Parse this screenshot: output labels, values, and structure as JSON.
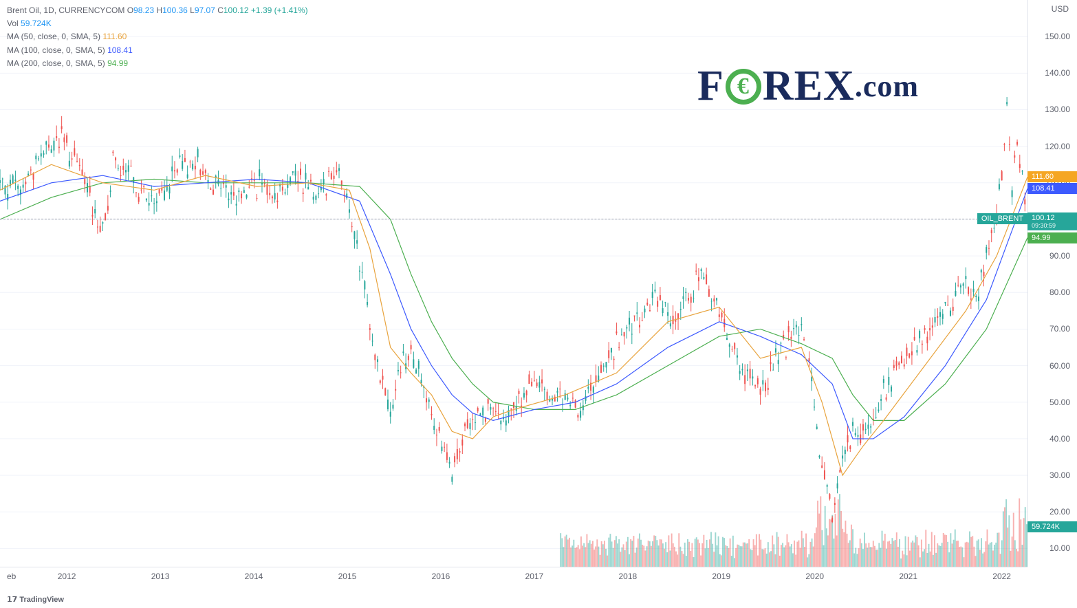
{
  "header": {
    "symbol_desc": "Brent Oil, 1D, CURRENCYCOM",
    "open_label": "O",
    "open": "98.23",
    "high_label": "H",
    "high": "100.36",
    "low_label": "L",
    "low": "97.07",
    "close_label": "C",
    "close": "100.12",
    "change": "+1.39 (+1.41%)",
    "vol_label": "Vol",
    "vol": "59.724K",
    "ma50_label": "MA (50, close, 0, SMA, 5)",
    "ma50": "111.60",
    "ma100_label": "MA (100, close, 0, SMA, 5)",
    "ma100": "108.41",
    "ma200_label": "MA (200, close, 0, SMA, 5)",
    "ma200": "94.99"
  },
  "axis": {
    "y_label": "USD",
    "y_ticks": [
      "150.00",
      "140.00",
      "130.00",
      "120.00",
      "110.00",
      "100.00",
      "90.00",
      "80.00",
      "70.00",
      "60.00",
      "50.00",
      "40.00",
      "30.00",
      "20.00",
      "10.00"
    ],
    "ylim_top": 160,
    "ylim_bottom": 5,
    "x_ticks": [
      "2012",
      "2013",
      "2014",
      "2015",
      "2016",
      "2017",
      "2018",
      "2019",
      "2020",
      "2021",
      "2022"
    ],
    "x_first_label": "eb"
  },
  "badges": {
    "ma50": {
      "value": "111.60",
      "bg": "#f5a623",
      "y": 111.6
    },
    "ma100": {
      "value": "108.41",
      "bg": "#3d5afe",
      "y": 108.41
    },
    "symbol": {
      "value": "OIL_BRENT",
      "bg": "#26a69a",
      "y": 100.12
    },
    "price": {
      "value": "100.12",
      "sub": "09:30:59",
      "bg": "#26a69a",
      "y": 100.12
    },
    "ma200": {
      "value": "94.99",
      "bg": "#4caf50",
      "y": 94.99
    },
    "vol": {
      "value": "59.724K",
      "bg": "#26a69a",
      "y": 16
    }
  },
  "chart": {
    "type": "candlestick+ma+volume",
    "colors": {
      "up": "#26a69a",
      "down": "#ef5350",
      "ma50": "#e8a33d",
      "ma100": "#3d5afe",
      "ma200": "#4caf50",
      "grid": "#f0f3fa",
      "bg": "#ffffff",
      "text": "#5d606b"
    },
    "line_width": 1.2,
    "price_series": [
      {
        "t": 0.0,
        "v": 110
      },
      {
        "t": 0.02,
        "v": 108
      },
      {
        "t": 0.04,
        "v": 118
      },
      {
        "t": 0.06,
        "v": 122
      },
      {
        "t": 0.08,
        "v": 112
      },
      {
        "t": 0.1,
        "v": 97
      },
      {
        "t": 0.11,
        "v": 115
      },
      {
        "t": 0.13,
        "v": 110
      },
      {
        "t": 0.15,
        "v": 104
      },
      {
        "t": 0.17,
        "v": 112
      },
      {
        "t": 0.19,
        "v": 116
      },
      {
        "t": 0.21,
        "v": 110
      },
      {
        "t": 0.23,
        "v": 106
      },
      {
        "t": 0.25,
        "v": 110
      },
      {
        "t": 0.27,
        "v": 108
      },
      {
        "t": 0.29,
        "v": 112
      },
      {
        "t": 0.31,
        "v": 108
      },
      {
        "t": 0.33,
        "v": 115
      },
      {
        "t": 0.34,
        "v": 102
      },
      {
        "t": 0.35,
        "v": 88
      },
      {
        "t": 0.36,
        "v": 70
      },
      {
        "t": 0.37,
        "v": 58
      },
      {
        "t": 0.38,
        "v": 48
      },
      {
        "t": 0.39,
        "v": 60
      },
      {
        "t": 0.4,
        "v": 65
      },
      {
        "t": 0.41,
        "v": 56
      },
      {
        "t": 0.42,
        "v": 48
      },
      {
        "t": 0.43,
        "v": 37
      },
      {
        "t": 0.44,
        "v": 30
      },
      {
        "t": 0.45,
        "v": 40
      },
      {
        "t": 0.46,
        "v": 45
      },
      {
        "t": 0.47,
        "v": 50
      },
      {
        "t": 0.48,
        "v": 46
      },
      {
        "t": 0.49,
        "v": 42
      },
      {
        "t": 0.5,
        "v": 50
      },
      {
        "t": 0.52,
        "v": 55
      },
      {
        "t": 0.54,
        "v": 52
      },
      {
        "t": 0.56,
        "v": 48
      },
      {
        "t": 0.58,
        "v": 55
      },
      {
        "t": 0.6,
        "v": 65
      },
      {
        "t": 0.62,
        "v": 72
      },
      {
        "t": 0.64,
        "v": 78
      },
      {
        "t": 0.66,
        "v": 72
      },
      {
        "t": 0.68,
        "v": 85
      },
      {
        "t": 0.7,
        "v": 75
      },
      {
        "t": 0.72,
        "v": 60
      },
      {
        "t": 0.74,
        "v": 52
      },
      {
        "t": 0.76,
        "v": 65
      },
      {
        "t": 0.78,
        "v": 70
      },
      {
        "t": 0.79,
        "v": 55
      },
      {
        "t": 0.8,
        "v": 30
      },
      {
        "t": 0.81,
        "v": 20
      },
      {
        "t": 0.82,
        "v": 35
      },
      {
        "t": 0.83,
        "v": 42
      },
      {
        "t": 0.84,
        "v": 40
      },
      {
        "t": 0.85,
        "v": 45
      },
      {
        "t": 0.86,
        "v": 52
      },
      {
        "t": 0.88,
        "v": 62
      },
      {
        "t": 0.9,
        "v": 68
      },
      {
        "t": 0.92,
        "v": 75
      },
      {
        "t": 0.94,
        "v": 83
      },
      {
        "t": 0.95,
        "v": 78
      },
      {
        "t": 0.96,
        "v": 90
      },
      {
        "t": 0.97,
        "v": 100
      },
      {
        "t": 0.98,
        "v": 130
      },
      {
        "t": 0.985,
        "v": 108
      },
      {
        "t": 0.99,
        "v": 122
      },
      {
        "t": 1.0,
        "v": 100
      }
    ],
    "ma50_series": [
      {
        "t": 0.0,
        "v": 108
      },
      {
        "t": 0.05,
        "v": 115
      },
      {
        "t": 0.1,
        "v": 110
      },
      {
        "t": 0.15,
        "v": 108
      },
      {
        "t": 0.2,
        "v": 112
      },
      {
        "t": 0.25,
        "v": 109
      },
      {
        "t": 0.3,
        "v": 110
      },
      {
        "t": 0.34,
        "v": 108
      },
      {
        "t": 0.36,
        "v": 92
      },
      {
        "t": 0.38,
        "v": 65
      },
      {
        "t": 0.4,
        "v": 58
      },
      {
        "t": 0.42,
        "v": 52
      },
      {
        "t": 0.44,
        "v": 42
      },
      {
        "t": 0.46,
        "v": 40
      },
      {
        "t": 0.48,
        "v": 46
      },
      {
        "t": 0.5,
        "v": 48
      },
      {
        "t": 0.55,
        "v": 52
      },
      {
        "t": 0.6,
        "v": 58
      },
      {
        "t": 0.65,
        "v": 72
      },
      {
        "t": 0.7,
        "v": 76
      },
      {
        "t": 0.74,
        "v": 62
      },
      {
        "t": 0.78,
        "v": 65
      },
      {
        "t": 0.8,
        "v": 50
      },
      {
        "t": 0.82,
        "v": 30
      },
      {
        "t": 0.84,
        "v": 38
      },
      {
        "t": 0.86,
        "v": 45
      },
      {
        "t": 0.9,
        "v": 60
      },
      {
        "t": 0.94,
        "v": 75
      },
      {
        "t": 0.97,
        "v": 90
      },
      {
        "t": 1.0,
        "v": 111.6
      }
    ],
    "ma100_series": [
      {
        "t": 0.0,
        "v": 105
      },
      {
        "t": 0.05,
        "v": 110
      },
      {
        "t": 0.1,
        "v": 112
      },
      {
        "t": 0.15,
        "v": 109
      },
      {
        "t": 0.2,
        "v": 110
      },
      {
        "t": 0.25,
        "v": 111
      },
      {
        "t": 0.3,
        "v": 110
      },
      {
        "t": 0.35,
        "v": 105
      },
      {
        "t": 0.38,
        "v": 85
      },
      {
        "t": 0.4,
        "v": 70
      },
      {
        "t": 0.42,
        "v": 60
      },
      {
        "t": 0.44,
        "v": 52
      },
      {
        "t": 0.46,
        "v": 47
      },
      {
        "t": 0.48,
        "v": 45
      },
      {
        "t": 0.52,
        "v": 48
      },
      {
        "t": 0.56,
        "v": 50
      },
      {
        "t": 0.6,
        "v": 55
      },
      {
        "t": 0.65,
        "v": 65
      },
      {
        "t": 0.7,
        "v": 72
      },
      {
        "t": 0.74,
        "v": 68
      },
      {
        "t": 0.78,
        "v": 63
      },
      {
        "t": 0.81,
        "v": 55
      },
      {
        "t": 0.83,
        "v": 40
      },
      {
        "t": 0.85,
        "v": 40
      },
      {
        "t": 0.88,
        "v": 46
      },
      {
        "t": 0.92,
        "v": 60
      },
      {
        "t": 0.96,
        "v": 78
      },
      {
        "t": 1.0,
        "v": 108.4
      }
    ],
    "ma200_series": [
      {
        "t": 0.0,
        "v": 100
      },
      {
        "t": 0.05,
        "v": 106
      },
      {
        "t": 0.1,
        "v": 110
      },
      {
        "t": 0.15,
        "v": 111
      },
      {
        "t": 0.2,
        "v": 110
      },
      {
        "t": 0.25,
        "v": 110
      },
      {
        "t": 0.3,
        "v": 110
      },
      {
        "t": 0.35,
        "v": 109
      },
      {
        "t": 0.38,
        "v": 100
      },
      {
        "t": 0.4,
        "v": 85
      },
      {
        "t": 0.42,
        "v": 72
      },
      {
        "t": 0.44,
        "v": 62
      },
      {
        "t": 0.46,
        "v": 55
      },
      {
        "t": 0.48,
        "v": 50
      },
      {
        "t": 0.52,
        "v": 48
      },
      {
        "t": 0.56,
        "v": 48
      },
      {
        "t": 0.6,
        "v": 52
      },
      {
        "t": 0.65,
        "v": 60
      },
      {
        "t": 0.7,
        "v": 68
      },
      {
        "t": 0.74,
        "v": 70
      },
      {
        "t": 0.78,
        "v": 66
      },
      {
        "t": 0.81,
        "v": 62
      },
      {
        "t": 0.83,
        "v": 52
      },
      {
        "t": 0.85,
        "v": 45
      },
      {
        "t": 0.88,
        "v": 45
      },
      {
        "t": 0.92,
        "v": 55
      },
      {
        "t": 0.96,
        "v": 70
      },
      {
        "t": 1.0,
        "v": 94.99
      }
    ],
    "volume_start_t": 0.545,
    "volume_max": 220
  },
  "logo": {
    "pre": "F",
    "post": "REX",
    "dotcom": ".com"
  },
  "footer": "TradingView"
}
